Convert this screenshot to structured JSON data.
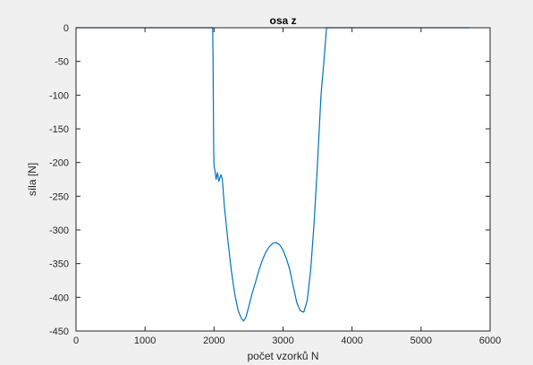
{
  "chart_data": {
    "type": "line",
    "title": "osa z",
    "xlabel": "počet vzorků N",
    "ylabel": "síla [N]",
    "xlim": [
      0,
      6000
    ],
    "ylim": [
      -450,
      0
    ],
    "xticks": [
      0,
      1000,
      2000,
      3000,
      4000,
      5000,
      6000
    ],
    "yticks": [
      0,
      -50,
      -100,
      -150,
      -200,
      -250,
      -300,
      -350,
      -400,
      -450
    ],
    "xtick_labels": [
      "0",
      "1000",
      "2000",
      "3000",
      "4000",
      "5000",
      "6000"
    ],
    "ytick_labels": [
      "0",
      "-50",
      "-100",
      "-150",
      "-200",
      "-250",
      "-300",
      "-350",
      "-400",
      "-450"
    ],
    "grid": false,
    "colors": {
      "line": "#0072bd",
      "axes": "#262626",
      "axes_background": "#ffffff",
      "figure_background": "#f0f0f0"
    },
    "series": [
      {
        "x": [
          0,
          1000,
          1900,
          1980,
          1985,
          1990,
          1995,
          2000,
          2010,
          2030,
          2050,
          2070,
          2100,
          2120,
          2150,
          2200,
          2250,
          2300,
          2350,
          2400,
          2430,
          2460,
          2500,
          2550,
          2600,
          2650,
          2700,
          2750,
          2800,
          2850,
          2900,
          2950,
          3000,
          3050,
          3100,
          3150,
          3200,
          3250,
          3300,
          3350,
          3400,
          3450,
          3500,
          3550,
          3600,
          3630,
          3650,
          3700,
          4000,
          5000,
          5700
        ],
        "y": [
          0,
          0,
          0,
          0,
          -40,
          -110,
          -180,
          -205,
          -210,
          -225,
          -215,
          -228,
          -218,
          -225,
          -265,
          -315,
          -360,
          -395,
          -420,
          -432,
          -435,
          -430,
          -415,
          -395,
          -378,
          -360,
          -345,
          -333,
          -325,
          -320,
          -319,
          -322,
          -330,
          -343,
          -360,
          -385,
          -408,
          -420,
          -422,
          -405,
          -360,
          -290,
          -200,
          -100,
          -40,
          0,
          0,
          0,
          0,
          0,
          0
        ]
      }
    ]
  }
}
